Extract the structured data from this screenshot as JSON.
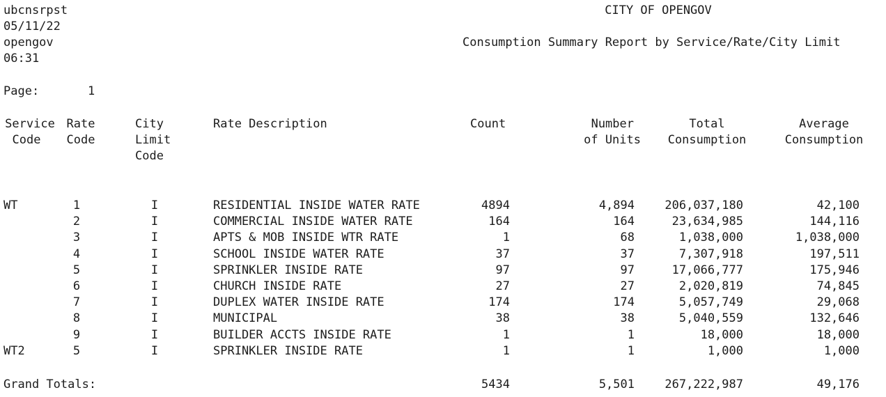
{
  "header": {
    "program": "ubcnsrpst",
    "date": "05/11/22",
    "user": "opengov",
    "time": "06:31",
    "city": "CITY OF OPENGOV",
    "report_title": "Consumption Summary Report by Service/Rate/City Limit",
    "page_label": "Page:",
    "page_number": "1"
  },
  "columns": {
    "service_code": [
      "Service",
      "Code"
    ],
    "rate_code": [
      "Rate",
      "Code"
    ],
    "city_limit_code": [
      "City",
      "Limit",
      "Code"
    ],
    "rate_description": "Rate Description",
    "count": "Count",
    "number_of_units": [
      "Number",
      "of Units"
    ],
    "total_consumption": [
      "Total",
      "Consumption"
    ],
    "average_consumption": [
      "Average",
      "Consumption"
    ]
  },
  "rows": [
    {
      "service": "WT",
      "rate": "1",
      "limit": "I",
      "description": "RESIDENTIAL INSIDE WATER RATE",
      "count": "4894",
      "units": "4,894",
      "total": "206,037,180",
      "average": "42,100"
    },
    {
      "service": "",
      "rate": "2",
      "limit": "I",
      "description": "COMMERCIAL INSIDE WATER RATE",
      "count": "164",
      "units": "164",
      "total": "23,634,985",
      "average": "144,116"
    },
    {
      "service": "",
      "rate": "3",
      "limit": "I",
      "description": "APTS & MOB INSIDE WTR RATE",
      "count": "1",
      "units": "68",
      "total": "1,038,000",
      "average": "1,038,000"
    },
    {
      "service": "",
      "rate": "4",
      "limit": "I",
      "description": "SCHOOL INSIDE WATER RATE",
      "count": "37",
      "units": "37",
      "total": "7,307,918",
      "average": "197,511"
    },
    {
      "service": "",
      "rate": "5",
      "limit": "I",
      "description": "SPRINKLER INSIDE RATE",
      "count": "97",
      "units": "97",
      "total": "17,066,777",
      "average": "175,946"
    },
    {
      "service": "",
      "rate": "6",
      "limit": "I",
      "description": "CHURCH INSIDE RATE",
      "count": "27",
      "units": "27",
      "total": "2,020,819",
      "average": "74,845"
    },
    {
      "service": "",
      "rate": "7",
      "limit": "I",
      "description": "DUPLEX WATER INSIDE RATE",
      "count": "174",
      "units": "174",
      "total": "5,057,749",
      "average": "29,068"
    },
    {
      "service": "",
      "rate": "8",
      "limit": "I",
      "description": "MUNICIPAL",
      "count": "38",
      "units": "38",
      "total": "5,040,559",
      "average": "132,646"
    },
    {
      "service": "",
      "rate": "9",
      "limit": "I",
      "description": "BUILDER ACCTS INSIDE RATE",
      "count": "1",
      "units": "1",
      "total": "18,000",
      "average": "18,000"
    },
    {
      "service": "WT2",
      "rate": "5",
      "limit": "I",
      "description": "SPRINKLER INSIDE RATE",
      "count": "1",
      "units": "1",
      "total": "1,000",
      "average": "1,000"
    }
  ],
  "grand_totals": {
    "label": "Grand Totals:",
    "count": "5434",
    "units": "5,501",
    "total": "267,222,987",
    "average": "49,176"
  }
}
